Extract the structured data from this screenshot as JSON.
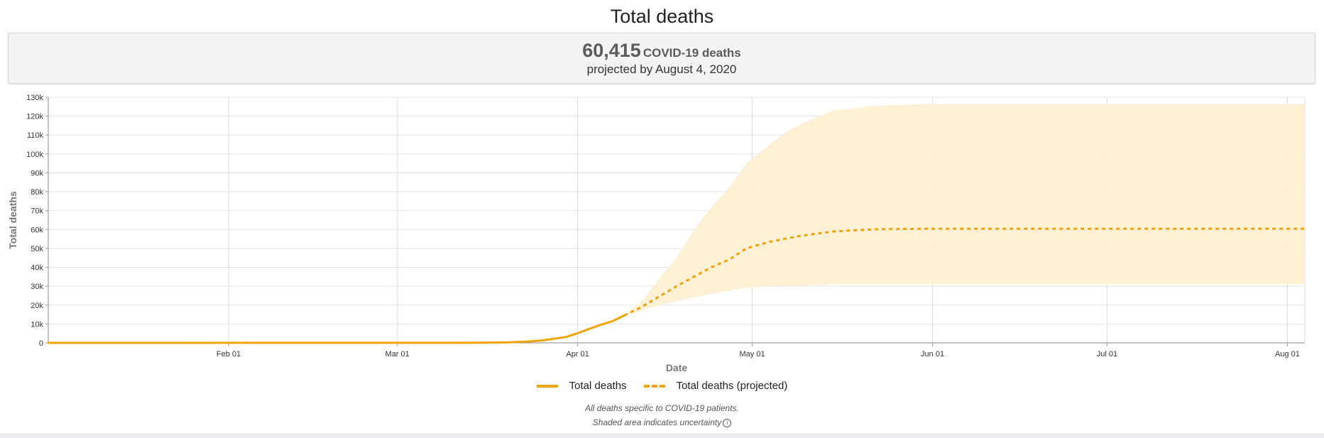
{
  "page": {
    "title": "Total deaths",
    "summary": {
      "number": "60,415",
      "unit": "COVID-19 deaths",
      "subtitle": "projected by August 4, 2020"
    },
    "footnotes": {
      "line1": "All deaths specific to COVID-19 patients.",
      "line2": "Shaded area indicates uncertainty"
    },
    "info_icon": "info-circle-icon"
  },
  "chart_data": {
    "type": "line",
    "xlabel": "Date",
    "ylabel": "Total deaths",
    "ylim": [
      0,
      130000
    ],
    "y_ticks": [
      "0",
      "10k",
      "20k",
      "30k",
      "40k",
      "50k",
      "60k",
      "70k",
      "80k",
      "90k",
      "100k",
      "110k",
      "120k",
      "130k"
    ],
    "x_domain": [
      "2020-01-01",
      "2020-08-04"
    ],
    "x_ticks": [
      {
        "date": "2020-02-01",
        "label": "Feb 01"
      },
      {
        "date": "2020-03-01",
        "label": "Mar 01"
      },
      {
        "date": "2020-04-01",
        "label": "Apr 01"
      },
      {
        "date": "2020-05-01",
        "label": "May 01"
      },
      {
        "date": "2020-06-01",
        "label": "Jun 01"
      },
      {
        "date": "2020-07-01",
        "label": "Jul 01"
      },
      {
        "date": "2020-08-01",
        "label": "Aug 01"
      }
    ],
    "grid": true,
    "legend_position": "bottom",
    "colors": {
      "line": "#f0a30a",
      "band": "#fdefd3"
    },
    "series": [
      {
        "name": "Total deaths",
        "style": "solid",
        "points": [
          [
            "2020-01-01",
            0
          ],
          [
            "2020-03-01",
            30
          ],
          [
            "2020-03-10",
            50
          ],
          [
            "2020-03-15",
            120
          ],
          [
            "2020-03-20",
            300
          ],
          [
            "2020-03-24",
            800
          ],
          [
            "2020-03-26",
            1300
          ],
          [
            "2020-03-28",
            2200
          ],
          [
            "2020-03-30",
            3100
          ],
          [
            "2020-04-01",
            5100
          ],
          [
            "2020-04-03",
            7400
          ],
          [
            "2020-04-05",
            9600
          ],
          [
            "2020-04-07",
            11500
          ],
          [
            "2020-04-09",
            14500
          ]
        ]
      },
      {
        "name": "Total deaths (projected)",
        "style": "dashed",
        "points": [
          [
            "2020-04-09",
            14500
          ],
          [
            "2020-04-12",
            19000
          ],
          [
            "2020-04-15",
            24500
          ],
          [
            "2020-04-18",
            30000
          ],
          [
            "2020-04-21",
            35000
          ],
          [
            "2020-04-24",
            40000
          ],
          [
            "2020-04-27",
            44000
          ],
          [
            "2020-04-30",
            50000
          ],
          [
            "2020-05-04",
            53500
          ],
          [
            "2020-05-09",
            56500
          ],
          [
            "2020-05-15",
            59000
          ],
          [
            "2020-05-22",
            60100
          ],
          [
            "2020-06-01",
            60400
          ],
          [
            "2020-07-01",
            60415
          ],
          [
            "2020-08-04",
            60415
          ]
        ]
      }
    ],
    "uncertainty_band": {
      "name": "Shaded area indicates uncertainty",
      "points": [
        [
          "2020-04-09",
          14500,
          14500
        ],
        [
          "2020-04-12",
          17000,
          22000
        ],
        [
          "2020-04-15",
          20000,
          34000
        ],
        [
          "2020-04-18",
          22000,
          45000
        ],
        [
          "2020-04-21",
          24000,
          60000
        ],
        [
          "2020-04-24",
          26000,
          72000
        ],
        [
          "2020-04-27",
          27500,
          82000
        ],
        [
          "2020-04-30",
          29000,
          95000
        ],
        [
          "2020-05-04",
          30000,
          105000
        ],
        [
          "2020-05-07",
          30000,
          112000
        ],
        [
          "2020-05-11",
          30500,
          118000
        ],
        [
          "2020-05-15",
          31000,
          123000
        ],
        [
          "2020-05-22",
          31000,
          125500
        ],
        [
          "2020-06-01",
          31000,
          126500
        ],
        [
          "2020-07-01",
          31000,
          126500
        ],
        [
          "2020-08-04",
          31000,
          126500
        ]
      ]
    }
  }
}
